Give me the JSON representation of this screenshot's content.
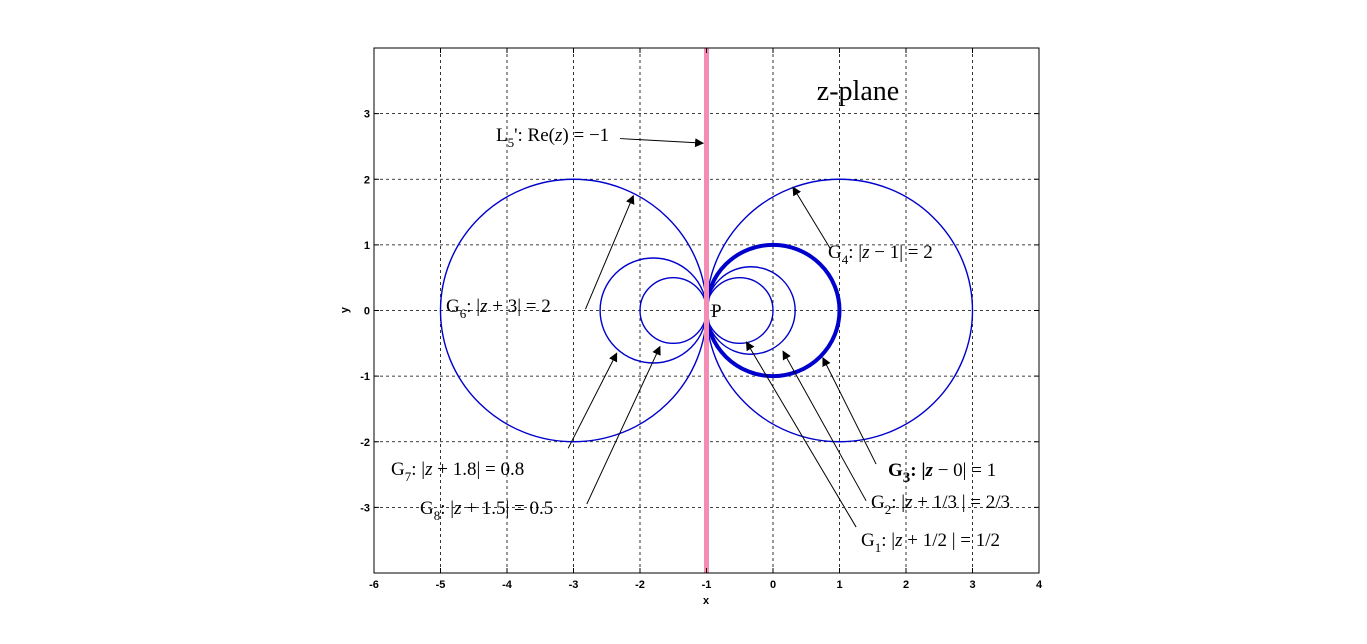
{
  "chart_data": {
    "type": "line",
    "title": "z-plane",
    "xlabel": "x",
    "ylabel": "y",
    "xlim": [
      -6,
      4
    ],
    "ylim": [
      -4,
      4
    ],
    "x_ticks": [
      -6,
      -5,
      -4,
      -3,
      -2,
      -1,
      0,
      1,
      2,
      3,
      4
    ],
    "y_ticks": [
      -3,
      -2,
      -1,
      0,
      1,
      2,
      3
    ],
    "grid": true,
    "series": [
      {
        "name": "G1: |z + 1/2 | = 1/2",
        "kind": "circle",
        "center": [
          -0.5,
          0
        ],
        "radius": 0.5,
        "color": "#0000cc",
        "bold": false
      },
      {
        "name": "G2: |z + 1/3 | = 2/3",
        "kind": "circle",
        "center": [
          -0.3333,
          0
        ],
        "radius": 0.6667,
        "color": "#0000cc",
        "bold": false
      },
      {
        "name": "G3: |z − 0| = 1",
        "kind": "circle",
        "center": [
          0,
          0
        ],
        "radius": 1,
        "color": "#0000cc",
        "bold": true
      },
      {
        "name": "G4: |z − 1| = 2",
        "kind": "circle",
        "center": [
          1,
          0
        ],
        "radius": 2,
        "color": "#0000cc",
        "bold": false
      },
      {
        "name": "G6: |z + 3| = 2",
        "kind": "circle",
        "center": [
          -3,
          0
        ],
        "radius": 2,
        "color": "#0000cc",
        "bold": false
      },
      {
        "name": "G7: |z + 1.8| = 0.8",
        "kind": "circle",
        "center": [
          -1.8,
          0
        ],
        "radius": 0.8,
        "color": "#0000cc",
        "bold": false
      },
      {
        "name": "G8: |z + 1.5| = 0.5",
        "kind": "circle",
        "center": [
          -1.5,
          0
        ],
        "radius": 0.5,
        "color": "#0000cc",
        "bold": false
      },
      {
        "name": "L5': Re(z) = −1",
        "kind": "vline",
        "x": -1,
        "color": "#f48cb4",
        "bold": true
      }
    ],
    "point": {
      "label": "P",
      "x": -1,
      "y": 0
    },
    "annotations": {
      "l5": {
        "sym": "L",
        "sub": "5",
        "rest": "': Re(",
        "var": "z",
        "end": ") = −1",
        "from": [
          -2.3,
          2.62
        ],
        "to": [
          -1.05,
          2.55
        ]
      },
      "g4": {
        "sym": "G",
        "sub": "4",
        "rest": ": |",
        "var": "z",
        "end": " − 1| = 2",
        "from": [
          0.87,
          0.93
        ],
        "to": [
          0.3,
          1.88
        ]
      },
      "g6": {
        "sym": "G",
        "sub": "6",
        "rest": ": |",
        "var": "z",
        "end": " + 3| = 2",
        "from": [
          -2.82,
          0.02
        ],
        "to": [
          -2.1,
          1.75
        ]
      },
      "g7": {
        "sym": "G",
        "sub": "7",
        "rest": ": |",
        "var": "z",
        "end": " + 1.8| = 0.8",
        "from": [
          -3.08,
          -2.1
        ],
        "to": [
          -2.35,
          -0.65
        ]
      },
      "g8": {
        "sym": "G",
        "sub": "8",
        "rest": ": |",
        "var": "z",
        "end": " + 1.5| = 0.5",
        "from": [
          -2.8,
          -2.95
        ],
        "to": [
          -1.7,
          -0.55
        ]
      },
      "g3": {
        "sym": "G",
        "sub": "3",
        "rest": ":  |",
        "var": "z",
        "end": " − 0| = 1",
        "from": [
          1.55,
          -2.34
        ],
        "to": [
          0.75,
          -0.72
        ]
      },
      "g2": {
        "sym": "G",
        "sub": "2",
        "rest": ": |",
        "var": "z",
        "end": " + 1/3 | = 2/3",
        "from": [
          1.4,
          -2.9
        ],
        "to": [
          0.15,
          -0.62
        ]
      },
      "g1": {
        "sym": "G",
        "sub": "1",
        "rest": ": |",
        "var": "z",
        "end": " + 1/2 | = 1/2",
        "from": [
          1.25,
          -3.3
        ],
        "to": [
          -0.4,
          -0.48
        ]
      }
    }
  }
}
